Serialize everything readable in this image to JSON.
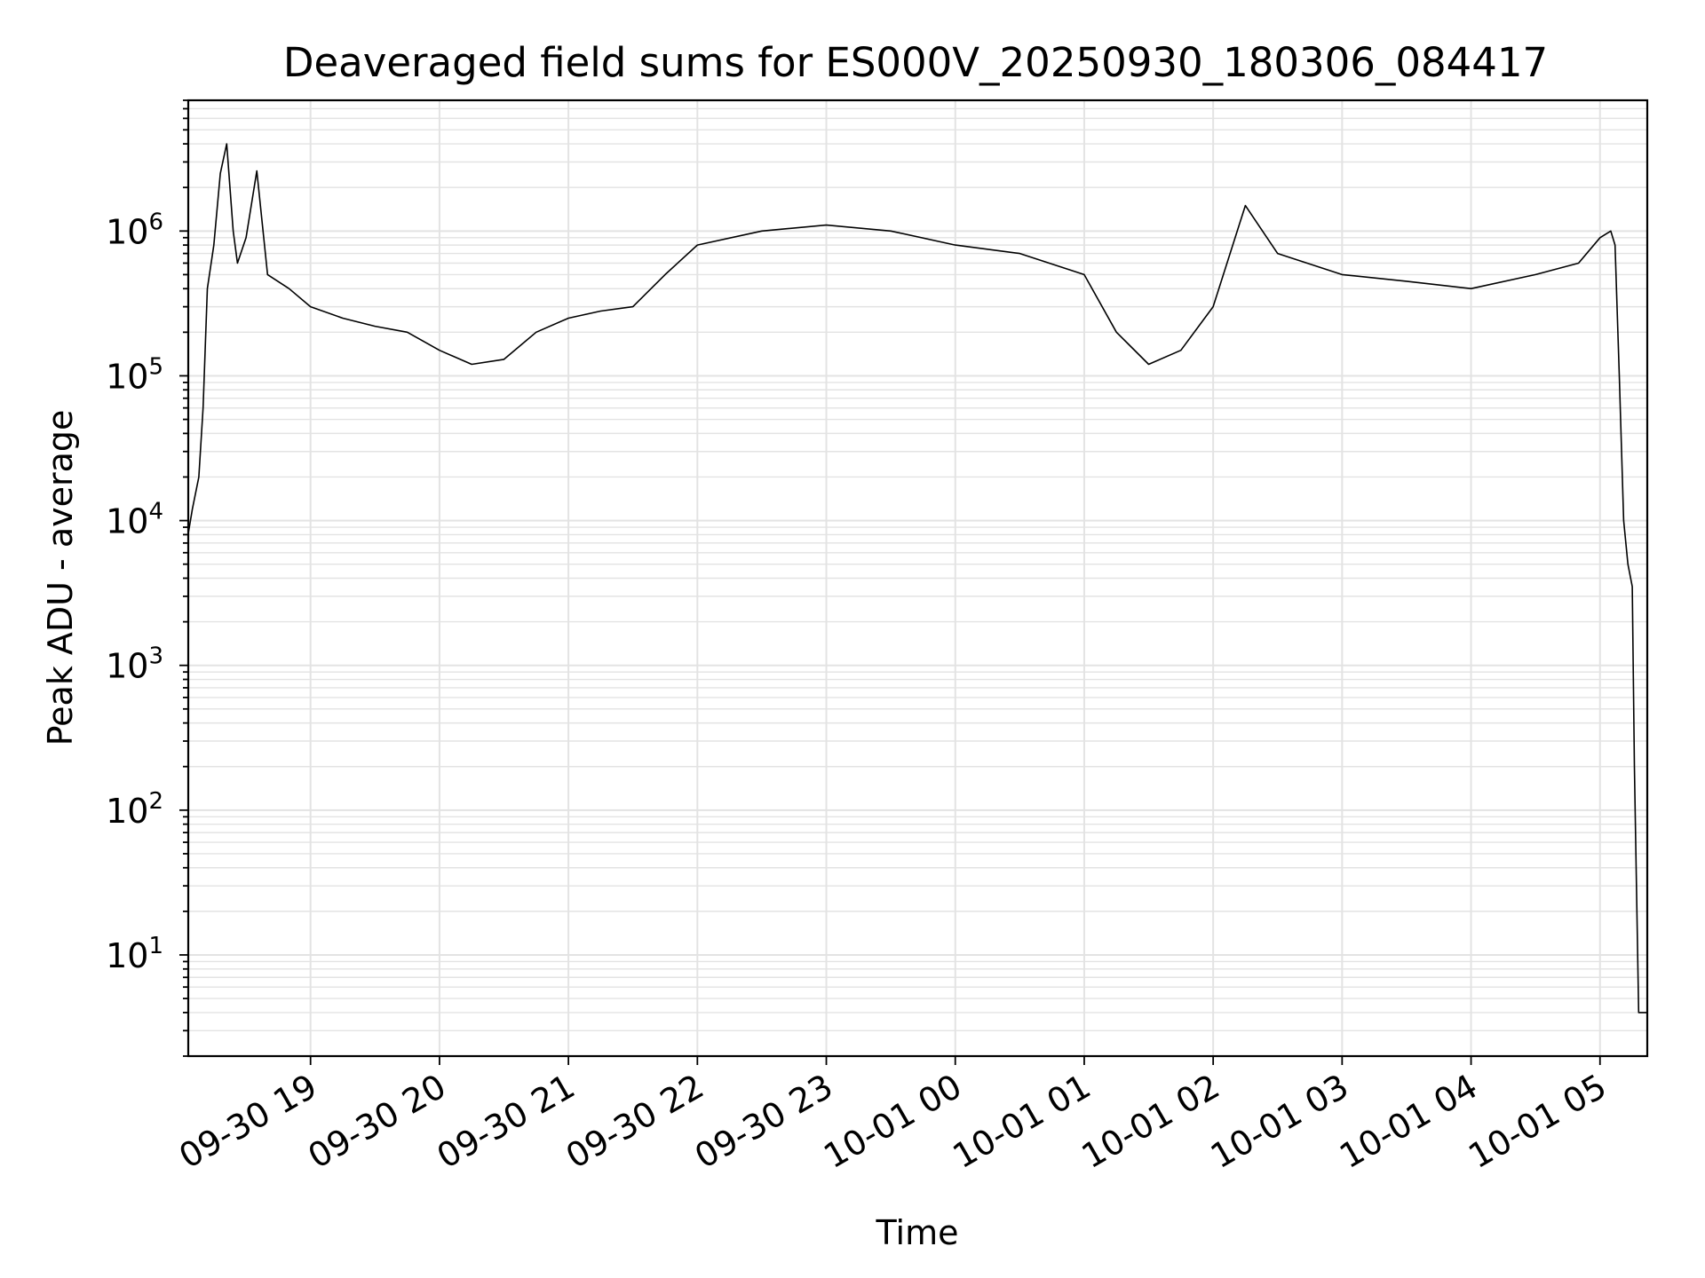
{
  "chart_data": {
    "type": "line",
    "title": "Deaveraged field sums for ES000V_20250930_180306_084417",
    "xlabel": "Time",
    "ylabel": "Peak ADU - average",
    "yscale": "log",
    "ylim": [
      2,
      8000000
    ],
    "xlim": [
      "2025-09-30 18:03:06",
      "2025-10-01 05:22:00"
    ],
    "grid": true,
    "line_color": "#000000",
    "grid_color": "#e3e3e3",
    "x_ticks": [
      {
        "value": "2025-09-30 19:00",
        "label": "09-30 19"
      },
      {
        "value": "2025-09-30 20:00",
        "label": "09-30 20"
      },
      {
        "value": "2025-09-30 21:00",
        "label": "09-30 21"
      },
      {
        "value": "2025-09-30 22:00",
        "label": "09-30 22"
      },
      {
        "value": "2025-09-30 23:00",
        "label": "09-30 23"
      },
      {
        "value": "2025-10-01 00:00",
        "label": "10-01 00"
      },
      {
        "value": "2025-10-01 01:00",
        "label": "10-01 01"
      },
      {
        "value": "2025-10-01 02:00",
        "label": "10-01 02"
      },
      {
        "value": "2025-10-01 03:00",
        "label": "10-01 03"
      },
      {
        "value": "2025-10-01 04:00",
        "label": "10-01 04"
      },
      {
        "value": "2025-10-01 05:00",
        "label": "10-01 05"
      }
    ],
    "y_ticks": [
      {
        "value": 10,
        "base": "10",
        "exp": "1"
      },
      {
        "value": 100,
        "base": "10",
        "exp": "2"
      },
      {
        "value": 1000,
        "base": "10",
        "exp": "3"
      },
      {
        "value": 10000,
        "base": "10",
        "exp": "4"
      },
      {
        "value": 100000,
        "base": "10",
        "exp": "5"
      },
      {
        "value": 1000000,
        "base": "10",
        "exp": "6"
      }
    ],
    "series": [
      {
        "x": [
          "2025-09-30 18:03",
          "2025-09-30 18:05",
          "2025-09-30 18:08",
          "2025-09-30 18:10",
          "2025-09-30 18:12",
          "2025-09-30 18:15",
          "2025-09-30 18:18",
          "2025-09-30 18:21",
          "2025-09-30 18:24",
          "2025-09-30 18:26",
          "2025-09-30 18:30",
          "2025-09-30 18:35",
          "2025-09-30 18:40",
          "2025-09-30 18:50",
          "2025-09-30 19:00",
          "2025-09-30 19:15",
          "2025-09-30 19:30",
          "2025-09-30 19:45",
          "2025-09-30 20:00",
          "2025-09-30 20:15",
          "2025-09-30 20:30",
          "2025-09-30 20:45",
          "2025-09-30 21:00",
          "2025-09-30 21:15",
          "2025-09-30 21:30",
          "2025-09-30 21:45",
          "2025-09-30 22:00",
          "2025-09-30 22:30",
          "2025-09-30 23:00",
          "2025-09-30 23:30",
          "2025-10-01 00:00",
          "2025-10-01 00:30",
          "2025-10-01 01:00",
          "2025-10-01 01:15",
          "2025-10-01 01:30",
          "2025-10-01 01:45",
          "2025-10-01 02:00",
          "2025-10-01 02:15",
          "2025-10-01 02:30",
          "2025-10-01 03:00",
          "2025-10-01 03:30",
          "2025-10-01 04:00",
          "2025-10-01 04:30",
          "2025-10-01 04:50",
          "2025-10-01 05:00",
          "2025-10-01 05:05",
          "2025-10-01 05:07",
          "2025-10-01 05:09",
          "2025-10-01 05:11",
          "2025-10-01 05:13",
          "2025-10-01 05:15",
          "2025-10-01 05:16",
          "2025-10-01 05:18",
          "2025-10-01 05:22"
        ],
        "y": [
          8000,
          12000,
          20000,
          60000,
          400000,
          800000,
          2500000,
          4000000,
          1000000,
          600000,
          900000,
          2600000,
          500000,
          400000,
          300000,
          250000,
          220000,
          200000,
          150000,
          120000,
          130000,
          200000,
          250000,
          280000,
          300000,
          500000,
          800000,
          1000000,
          1100000,
          1000000,
          800000,
          700000,
          500000,
          200000,
          120000,
          150000,
          300000,
          1500000,
          700000,
          500000,
          450000,
          400000,
          500000,
          600000,
          900000,
          1000000,
          800000,
          100000,
          10000,
          5000,
          3500,
          200,
          4,
          4
        ]
      }
    ]
  }
}
